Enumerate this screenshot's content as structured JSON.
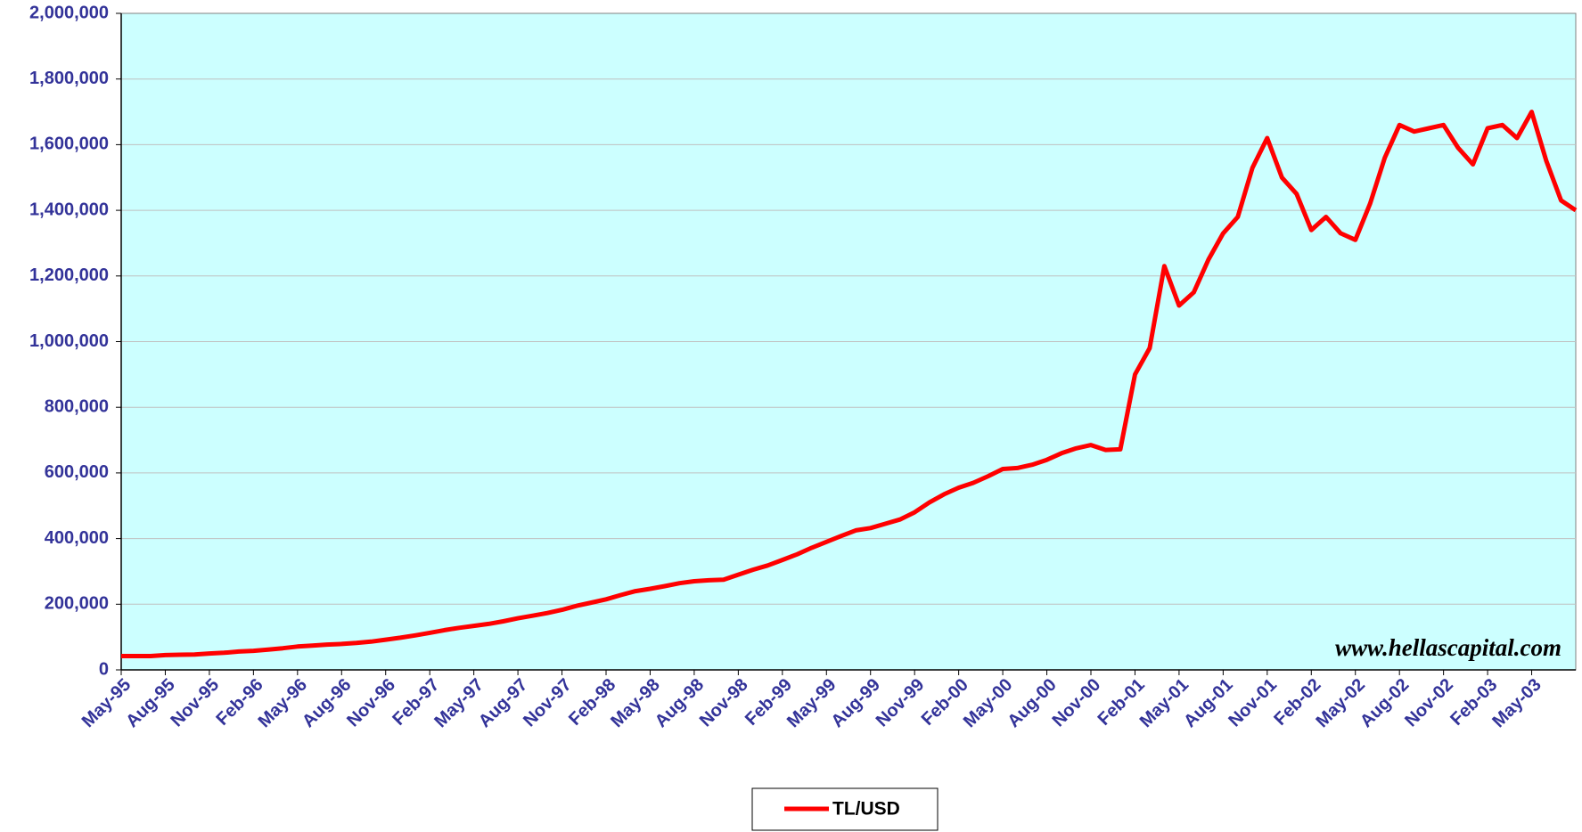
{
  "chart_data": {
    "type": "line",
    "annotations": [
      "www.hellascapital.com"
    ],
    "categories": [
      "May-95",
      null,
      null,
      "Aug-95",
      null,
      null,
      "Nov-95",
      null,
      null,
      "Feb-96",
      null,
      null,
      "May-96",
      null,
      null,
      "Aug-96",
      null,
      null,
      "Nov-96",
      null,
      null,
      "Feb-97",
      null,
      null,
      "May-97",
      null,
      null,
      "Aug-97",
      null,
      null,
      "Nov-97",
      null,
      null,
      "Feb-98",
      null,
      null,
      "May-98",
      null,
      null,
      "Aug-98",
      null,
      null,
      "Nov-98",
      null,
      null,
      "Feb-99",
      null,
      null,
      "May-99",
      null,
      null,
      "Aug-99",
      null,
      null,
      "Nov-99",
      null,
      null,
      "Feb-00",
      null,
      null,
      "May-00",
      null,
      null,
      "Aug-00",
      null,
      null,
      "Nov-00",
      null,
      null,
      "Feb-01",
      null,
      null,
      "May-01",
      null,
      null,
      "Aug-01",
      null,
      null,
      "Nov-01",
      null,
      null,
      "Feb-02",
      null,
      null,
      "May-02",
      null,
      null,
      "Aug-02",
      null,
      null,
      "Nov-02",
      null,
      null,
      "Feb-03",
      null,
      null,
      "May-03",
      null,
      null,
      null
    ],
    "series": [
      {
        "name": "TL/USD",
        "color": "#ff0000",
        "values": [
          42000,
          42000,
          42000,
          45000,
          46000,
          47000,
          50000,
          52000,
          56000,
          58000,
          62000,
          66000,
          71000,
          74000,
          77000,
          79000,
          82000,
          86000,
          92000,
          98000,
          105000,
          113000,
          121000,
          128000,
          134000,
          140000,
          148000,
          157000,
          165000,
          173000,
          183000,
          195000,
          205000,
          215000,
          228000,
          240000,
          247000,
          255000,
          264000,
          270000,
          273000,
          275000,
          290000,
          305000,
          318000,
          335000,
          352000,
          372000,
          390000,
          408000,
          425000,
          432000,
          445000,
          458000,
          480000,
          510000,
          535000,
          555000,
          570000,
          590000,
          612000,
          615000,
          625000,
          640000,
          660000,
          675000,
          685000,
          670000,
          672000,
          900000,
          980000,
          1230000,
          1110000,
          1150000,
          1250000,
          1330000,
          1380000,
          1530000,
          1620000,
          1500000,
          1450000,
          1340000,
          1380000,
          1330000,
          1310000,
          1420000,
          1560000,
          1660000,
          1640000,
          1650000,
          1660000,
          1590000,
          1540000,
          1650000,
          1660000,
          1620000,
          1700000,
          1550000,
          1430000,
          1400000
        ]
      }
    ],
    "ylim": [
      0,
      2000000
    ],
    "yticks": [
      0,
      {
        "value": 200000,
        "label": "200,000"
      },
      {
        "value": 400000,
        "label": "400,000"
      },
      {
        "value": 600000,
        "label": "600,000"
      },
      {
        "value": 800000,
        "label": "800,000"
      },
      {
        "value": 1000000,
        "label": "1,000,000"
      },
      {
        "value": 1200000,
        "label": "1,200,000"
      },
      {
        "value": 1400000,
        "label": "1,400,000"
      },
      {
        "value": 1600000,
        "label": "1,600,000"
      },
      {
        "value": 1800000,
        "label": "1,800,000"
      },
      {
        "value": 2000000,
        "label": "2,000,000"
      }
    ],
    "grid": true,
    "background": "#ccffff",
    "legend": "bottom"
  }
}
